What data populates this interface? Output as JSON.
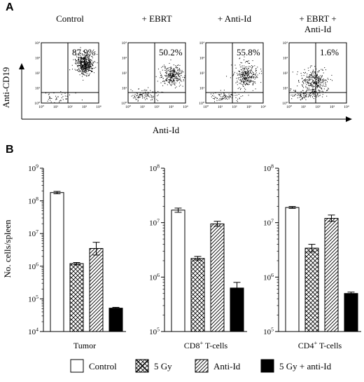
{
  "chart_data": [
    {
      "panel": "A",
      "type": "scatter",
      "title": "",
      "xlabel": "Anti-Id",
      "ylabel": "Anti-CD19",
      "tick_labels": [
        "10⁰",
        "10¹",
        "10²",
        "10³",
        "10⁴"
      ],
      "xlim": [
        1,
        10000
      ],
      "ylim": [
        1,
        10000
      ],
      "scale": "log",
      "series": [
        {
          "name": "Control",
          "gate_percent": "87.9%"
        },
        {
          "name": "+ EBRT",
          "gate_percent": "50.2%"
        },
        {
          "name": "+ Anti-Id",
          "gate_percent": "55.8%"
        },
        {
          "name": "+ EBRT +\nAnti-Id",
          "gate_percent": "1.6%"
        }
      ]
    },
    {
      "panel": "B",
      "type": "bar",
      "ylabel": "No. cells/spleen",
      "scale": "log",
      "categories": [
        "Control",
        "5 Gy",
        "Anti-Id",
        "5 Gy + anti-Id"
      ],
      "legend_position": "bottom",
      "subplots": [
        {
          "xlabel": "Tumor",
          "ylim": [
            10000,
            1000000000
          ],
          "tick_labels": [
            "10⁴",
            "10⁵",
            "10⁶",
            "10⁷",
            "10⁸",
            "10⁹"
          ],
          "values": [
            180000000,
            1200000,
            3500000,
            52000
          ],
          "errors": [
            [
              165000000,
              195000000
            ],
            [
              1100000,
              1300000
            ],
            [
              2200000,
              5400000
            ],
            [
              49000,
              55000
            ]
          ]
        },
        {
          "xlabel": "CD8⁺ T-cells",
          "ylim": [
            100000,
            100000000
          ],
          "tick_labels": [
            "10⁵",
            "10⁶",
            "10⁷",
            "10⁸"
          ],
          "values": [
            17000000,
            2200000,
            9500000,
            630000
          ],
          "errors": [
            [
              15500000,
              18500000
            ],
            [
              2050000,
              2400000
            ],
            [
              8600000,
              10600000
            ],
            [
              480000,
              800000
            ]
          ]
        },
        {
          "xlabel": "CD4⁺ T-cells",
          "ylim": [
            100000,
            100000000
          ],
          "tick_labels": [
            "10⁵",
            "10⁶",
            "10⁷",
            "10⁸"
          ],
          "values": [
            19000000,
            3400000,
            12000000,
            500000
          ],
          "errors": [
            [
              18300000,
              19800000
            ],
            [
              2900000,
              4000000
            ],
            [
              10600000,
              13800000
            ],
            [
              470000,
              530000
            ]
          ]
        }
      ]
    }
  ],
  "figure": {
    "panel_a_letter": "A",
    "panel_b_letter": "B"
  },
  "colors": {
    "ink": "#000000",
    "bar_fill_control": "#ffffff",
    "bar_fill_treated": "#000000"
  }
}
